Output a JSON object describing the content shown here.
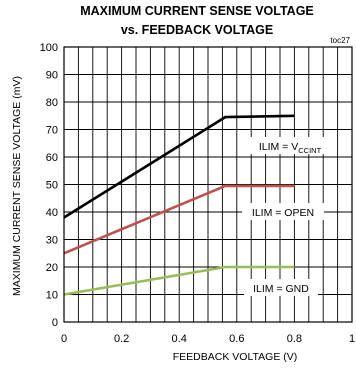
{
  "chart_data": {
    "type": "line",
    "title_line1": "MAXIMUM CURRENT SENSE VOLTAGE",
    "title_line2": "vs. FEEDBACK VOLTAGE",
    "figure_id": "toc27",
    "xlabel": "FEEDBACK VOLTAGE (V)",
    "ylabel": "MAXIMUM CURRENT SENSE VOLTAGE (mV)",
    "xlim": [
      0,
      1
    ],
    "ylim": [
      0,
      100
    ],
    "x_ticks": [
      "0",
      "0.2",
      "0.4",
      "0.6",
      "0.8",
      "1"
    ],
    "y_ticks": [
      "0",
      "10",
      "20",
      "30",
      "40",
      "50",
      "60",
      "70",
      "80",
      "90",
      "100"
    ],
    "grid": true,
    "series": [
      {
        "annotation_main": "ILIM = V",
        "annotation_sub": "CCINT",
        "color": "#000000",
        "x": [
          0,
          0.56,
          0.8
        ],
        "y": [
          38,
          74.5,
          75
        ]
      },
      {
        "annotation_main": "ILIM = OPEN",
        "annotation_sub": "",
        "color": "#c0504d",
        "x": [
          0,
          0.56,
          0.8
        ],
        "y": [
          25,
          49.5,
          49.5
        ]
      },
      {
        "annotation_main": "ILIM = GND",
        "annotation_sub": "",
        "color": "#9bbb59",
        "x": [
          0,
          0.56,
          0.8
        ],
        "y": [
          10,
          20,
          20
        ]
      }
    ]
  }
}
